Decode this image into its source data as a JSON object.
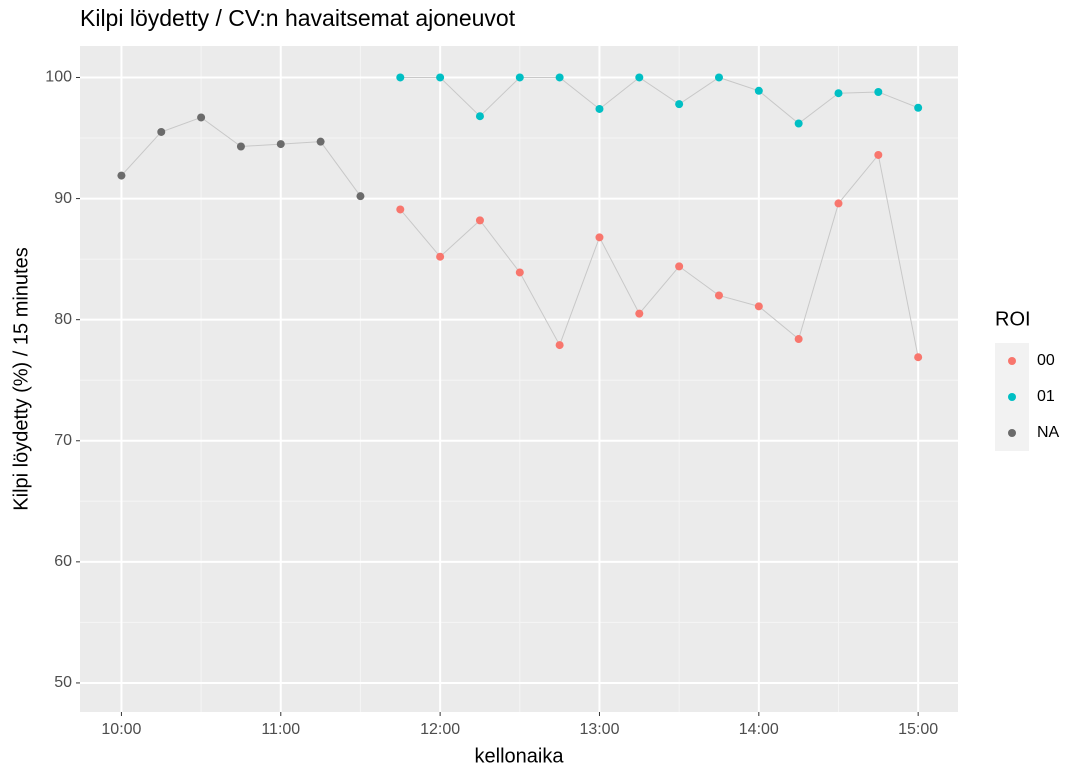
{
  "chart_data": {
    "type": "scatter",
    "title": "Kilpi löydetty / CV:n havaitsemat ajoneuvot",
    "x_label": "kellonaika",
    "y_label": "Kilpi löydetty (%) / 15 minutes",
    "legend_title": "ROI",
    "legend": "right",
    "line_color": "#c8c8c8",
    "grid": true,
    "xlim": [
      9.74,
      15.25
    ],
    "xticks": [
      {
        "value": 10,
        "label": "10:00"
      },
      {
        "value": 11,
        "label": "11:00"
      },
      {
        "value": 12,
        "label": "12:00"
      },
      {
        "value": 13,
        "label": "13:00"
      },
      {
        "value": 14,
        "label": "14:00"
      },
      {
        "value": 15,
        "label": "15:00"
      }
    ],
    "ylim": [
      47.6,
      102.6
    ],
    "yticks": [
      50,
      60,
      70,
      80,
      90,
      100
    ],
    "series": [
      {
        "name": "00",
        "color": "#f8766d",
        "x": [
          11.75,
          12,
          12.25,
          12.5,
          12.75,
          13,
          13.25,
          13.5,
          13.75,
          14,
          14.25,
          14.5,
          14.75,
          15
        ],
        "values": [
          89.1,
          85.2,
          88.2,
          83.9,
          77.9,
          86.8,
          80.5,
          84.4,
          82.0,
          81.1,
          78.4,
          89.6,
          93.6,
          76.9
        ]
      },
      {
        "name": "01",
        "color": "#00bfc4",
        "x": [
          11.75,
          12,
          12.25,
          12.5,
          12.75,
          13,
          13.25,
          13.5,
          13.75,
          14,
          14.25,
          14.5,
          14.75,
          15
        ],
        "values": [
          100,
          100,
          96.8,
          100,
          100,
          97.4,
          100,
          97.8,
          100,
          98.9,
          96.2,
          98.7,
          98.8,
          97.5
        ]
      },
      {
        "name": "NA",
        "color": "#6b6b6b",
        "x": [
          10,
          10.25,
          10.5,
          10.75,
          11,
          11.25,
          11.5
        ],
        "values": [
          91.9,
          95.5,
          96.7,
          94.3,
          94.5,
          94.7,
          90.2
        ]
      }
    ]
  }
}
